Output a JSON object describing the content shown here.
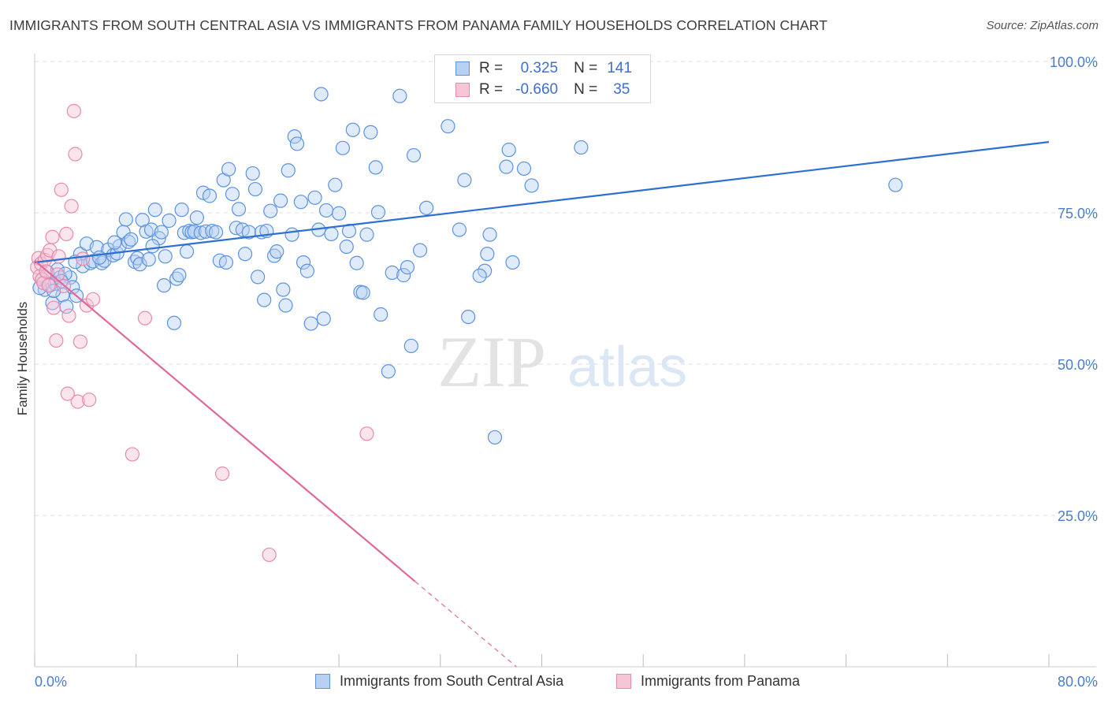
{
  "chart_title": "IMMIGRANTS FROM SOUTH CENTRAL ASIA VS IMMIGRANTS FROM PANAMA FAMILY HOUSEHOLDS CORRELATION CHART",
  "source": "Source: ZipAtlas.com",
  "watermark": {
    "zip": "ZIP",
    "atlas": "atlas"
  },
  "colors": {
    "series1": "#5b93e0",
    "series1_fill": "#b8d1f3",
    "series1_line": "#2d6fd2",
    "series2": "#e98aaa",
    "series2_fill": "#f6c6d6",
    "series2_line": "#e0689a",
    "grid": "#dddddd",
    "axis_label": "#4a7cc9"
  },
  "legend": {
    "r_label": "R =",
    "n_label": "N =",
    "rows": [
      {
        "r": "0.325",
        "n": "141"
      },
      {
        "r": "-0.660",
        "n": "35"
      }
    ]
  },
  "bottom_legend": [
    "Immigrants from South Central Asia",
    "Immigrants from Panama"
  ],
  "chart_data": {
    "type": "scatter",
    "title": "IMMIGRANTS FROM SOUTH CENTRAL ASIA VS IMMIGRANTS FROM PANAMA FAMILY HOUSEHOLDS CORRELATION CHART",
    "xlabel": "",
    "ylabel": "Family Households",
    "xlim": [
      0,
      80
    ],
    "ylim": [
      0,
      100
    ],
    "x_tick_labels": [
      "0.0%",
      "80.0%"
    ],
    "y_ticks": [
      25,
      50,
      75,
      100
    ],
    "y_tick_labels": [
      "25.0%",
      "50.0%",
      "75.0%",
      "100.0%"
    ],
    "grid": true,
    "legend_position": "top-center",
    "series": [
      {
        "name": "Immigrants from South Central Asia",
        "r": 0.325,
        "n": 141,
        "trend": {
          "x": [
            0,
            80
          ],
          "y": [
            66.8,
            86.7
          ]
        },
        "points": [
          [
            0.6,
            64.0
          ],
          [
            0.8,
            62.3
          ],
          [
            1.0,
            65.2
          ],
          [
            1.2,
            63.0
          ],
          [
            1.4,
            60.1
          ],
          [
            1.6,
            63.3
          ],
          [
            1.8,
            65.6
          ],
          [
            2.0,
            64.3
          ],
          [
            2.2,
            61.4
          ],
          [
            2.5,
            59.5
          ],
          [
            2.8,
            64.3
          ],
          [
            3.0,
            62.7
          ],
          [
            3.3,
            61.3
          ],
          [
            3.6,
            68.2
          ],
          [
            3.8,
            66.2
          ],
          [
            4.1,
            69.9
          ],
          [
            4.4,
            66.7
          ],
          [
            4.6,
            67.0
          ],
          [
            4.9,
            69.3
          ],
          [
            5.3,
            66.7
          ],
          [
            5.5,
            67.1
          ],
          [
            5.8,
            68.9
          ],
          [
            6.2,
            68.0
          ],
          [
            6.5,
            68.3
          ],
          [
            6.7,
            69.5
          ],
          [
            7.0,
            71.8
          ],
          [
            7.2,
            73.9
          ],
          [
            7.4,
            70.2
          ],
          [
            7.6,
            70.6
          ],
          [
            7.9,
            66.9
          ],
          [
            8.1,
            67.5
          ],
          [
            8.3,
            66.5
          ],
          [
            8.5,
            73.8
          ],
          [
            8.8,
            71.9
          ],
          [
            9.0,
            67.3
          ],
          [
            9.2,
            72.2
          ],
          [
            9.5,
            75.5
          ],
          [
            9.8,
            70.8
          ],
          [
            10.0,
            71.8
          ],
          [
            10.2,
            63.0
          ],
          [
            10.3,
            67.8
          ],
          [
            10.6,
            73.7
          ],
          [
            11.0,
            56.8
          ],
          [
            11.2,
            64.1
          ],
          [
            11.4,
            64.7
          ],
          [
            11.6,
            75.5
          ],
          [
            11.8,
            71.7
          ],
          [
            12.0,
            68.6
          ],
          [
            12.2,
            72.0
          ],
          [
            12.4,
            71.8
          ],
          [
            12.6,
            71.9
          ],
          [
            12.8,
            74.2
          ],
          [
            13.1,
            71.7
          ],
          [
            13.3,
            78.3
          ],
          [
            13.5,
            71.9
          ],
          [
            13.8,
            77.8
          ],
          [
            14.0,
            72.0
          ],
          [
            14.3,
            71.8
          ],
          [
            14.6,
            67.1
          ],
          [
            14.9,
            80.4
          ],
          [
            15.1,
            66.8
          ],
          [
            15.3,
            82.2
          ],
          [
            15.6,
            78.1
          ],
          [
            15.9,
            72.5
          ],
          [
            16.1,
            75.6
          ],
          [
            16.4,
            72.2
          ],
          [
            16.6,
            68.2
          ],
          [
            16.9,
            71.8
          ],
          [
            17.2,
            81.5
          ],
          [
            17.4,
            78.9
          ],
          [
            17.6,
            64.4
          ],
          [
            17.9,
            71.8
          ],
          [
            18.1,
            60.6
          ],
          [
            18.3,
            72.0
          ],
          [
            18.6,
            75.3
          ],
          [
            18.9,
            67.9
          ],
          [
            19.1,
            68.6
          ],
          [
            19.4,
            77.0
          ],
          [
            19.6,
            62.3
          ],
          [
            19.8,
            59.7
          ],
          [
            20.0,
            82.0
          ],
          [
            20.3,
            71.4
          ],
          [
            20.5,
            87.6
          ],
          [
            20.7,
            86.4
          ],
          [
            21.0,
            76.8
          ],
          [
            21.2,
            66.8
          ],
          [
            21.5,
            65.4
          ],
          [
            21.8,
            56.7
          ],
          [
            22.1,
            77.5
          ],
          [
            22.4,
            72.2
          ],
          [
            22.6,
            94.6
          ],
          [
            22.8,
            57.5
          ],
          [
            23.0,
            75.4
          ],
          [
            23.4,
            71.5
          ],
          [
            23.7,
            79.6
          ],
          [
            24.0,
            74.9
          ],
          [
            24.3,
            85.7
          ],
          [
            24.6,
            69.4
          ],
          [
            24.8,
            72.0
          ],
          [
            25.1,
            88.7
          ],
          [
            25.4,
            66.7
          ],
          [
            25.7,
            61.9
          ],
          [
            25.9,
            61.8
          ],
          [
            26.2,
            71.4
          ],
          [
            26.5,
            88.3
          ],
          [
            26.9,
            82.5
          ],
          [
            27.1,
            75.1
          ],
          [
            27.3,
            58.2
          ],
          [
            27.9,
            48.8
          ],
          [
            28.2,
            65.1
          ],
          [
            28.8,
            94.3
          ],
          [
            29.1,
            64.7
          ],
          [
            29.4,
            66.0
          ],
          [
            29.7,
            53.0
          ],
          [
            29.9,
            84.5
          ],
          [
            30.4,
            68.8
          ],
          [
            30.9,
            75.8
          ],
          [
            32.6,
            89.3
          ],
          [
            33.5,
            72.2
          ],
          [
            33.9,
            80.4
          ],
          [
            34.2,
            57.8
          ],
          [
            35.7,
            68.2
          ],
          [
            35.9,
            71.4
          ],
          [
            35.5,
            65.4
          ],
          [
            36.3,
            37.9
          ],
          [
            35.1,
            64.6
          ],
          [
            37.2,
            82.6
          ],
          [
            37.4,
            85.4
          ],
          [
            37.7,
            66.8
          ],
          [
            38.6,
            82.3
          ],
          [
            39.2,
            79.5
          ],
          [
            43.1,
            85.8
          ],
          [
            67.9,
            79.6
          ],
          [
            9.3,
            69.5
          ],
          [
            6.3,
            70.1
          ],
          [
            5.1,
            67.6
          ],
          [
            3.2,
            66.9
          ],
          [
            2.4,
            64.9
          ],
          [
            2.1,
            63.7
          ],
          [
            0.4,
            62.6
          ],
          [
            1.5,
            62.1
          ]
        ]
      },
      {
        "name": "Immigrants from Panama",
        "r": -0.66,
        "n": 35,
        "trend": {
          "x": [
            0,
            30
          ],
          "y": [
            67.1,
            14.1
          ]
        },
        "trend_dashed": {
          "x": [
            30,
            38
          ],
          "y": [
            14.1,
            0
          ]
        },
        "points": [
          [
            0.2,
            66.0
          ],
          [
            0.3,
            67.5
          ],
          [
            0.4,
            64.5
          ],
          [
            0.5,
            66.6
          ],
          [
            0.6,
            64.0
          ],
          [
            0.7,
            63.4
          ],
          [
            0.8,
            67.2
          ],
          [
            0.9,
            65.3
          ],
          [
            1.0,
            68.0
          ],
          [
            1.1,
            63.0
          ],
          [
            1.2,
            68.8
          ],
          [
            1.4,
            71.0
          ],
          [
            1.5,
            59.3
          ],
          [
            1.7,
            53.9
          ],
          [
            1.8,
            64.8
          ],
          [
            1.9,
            67.8
          ],
          [
            2.1,
            78.8
          ],
          [
            2.3,
            62.9
          ],
          [
            2.5,
            71.5
          ],
          [
            2.7,
            58.0
          ],
          [
            2.9,
            76.1
          ],
          [
            3.1,
            91.8
          ],
          [
            3.2,
            84.7
          ],
          [
            3.4,
            43.8
          ],
          [
            3.6,
            53.7
          ],
          [
            3.8,
            67.4
          ],
          [
            4.1,
            59.7
          ],
          [
            4.3,
            44.1
          ],
          [
            4.6,
            60.7
          ],
          [
            2.6,
            45.1
          ],
          [
            7.7,
            35.1
          ],
          [
            8.7,
            57.6
          ],
          [
            14.8,
            31.9
          ],
          [
            18.5,
            18.5
          ],
          [
            26.2,
            38.5
          ]
        ]
      }
    ]
  }
}
